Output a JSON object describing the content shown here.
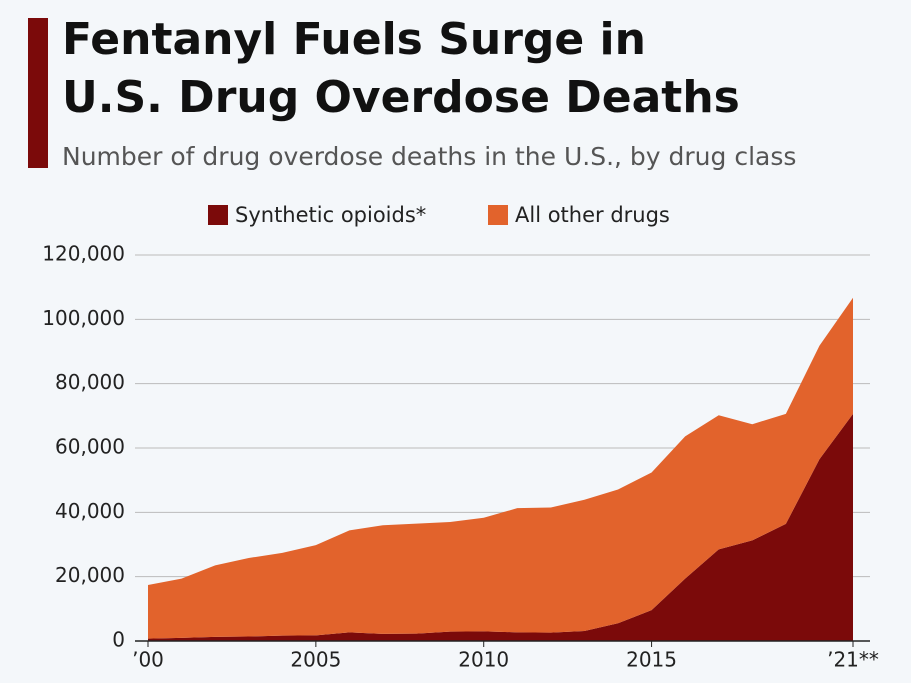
{
  "chart_data": {
    "type": "stacked_area",
    "title": "Fentanyl Fuels Surge in U.S. Drug Overdose Deaths",
    "title_lines": [
      "Fentanyl Fuels Surge in",
      "U.S. Drug Overdose Deaths"
    ],
    "subtitle": "Number of drug overdose deaths in the U.S., by drug class",
    "x": [
      2000,
      2001,
      2002,
      2003,
      2004,
      2005,
      2006,
      2007,
      2008,
      2009,
      2010,
      2011,
      2012,
      2013,
      2014,
      2015,
      2016,
      2017,
      2018,
      2019,
      2020,
      2021
    ],
    "series": [
      {
        "name": "Synthetic opioids*",
        "color": "#7b0a0a",
        "values": [
          730,
          960,
          1300,
          1400,
          1660,
          1740,
          2700,
          2200,
          2300,
          2900,
          3000,
          2700,
          2600,
          3100,
          5500,
          9600,
          19400,
          28500,
          31300,
          36400,
          56500,
          70600
        ]
      },
      {
        "name": "All other drugs",
        "color": "#e2632c",
        "values": [
          16670,
          18440,
          22200,
          24400,
          25740,
          28060,
          31700,
          33800,
          34200,
          34100,
          35300,
          38600,
          38900,
          40800,
          41600,
          42800,
          44200,
          41700,
          36100,
          34200,
          35300,
          36100
        ]
      }
    ],
    "xlim": [
      2000,
      2021
    ],
    "xticks": [
      {
        "value": 2000,
        "label": "’00"
      },
      2005,
      2010,
      2015,
      {
        "value": 2021,
        "label": "’21**"
      }
    ],
    "ylim": [
      0,
      120000
    ],
    "yticks": [
      0,
      {
        "value": 20000,
        "label": "20,000"
      },
      {
        "value": 40000,
        "label": "40,000"
      },
      {
        "value": 60000,
        "label": "60,000"
      },
      {
        "value": 80000,
        "label": "80,000"
      },
      {
        "value": 100000,
        "label": "100,000"
      },
      {
        "value": 120000,
        "label": "120,000"
      }
    ],
    "grid": true
  }
}
